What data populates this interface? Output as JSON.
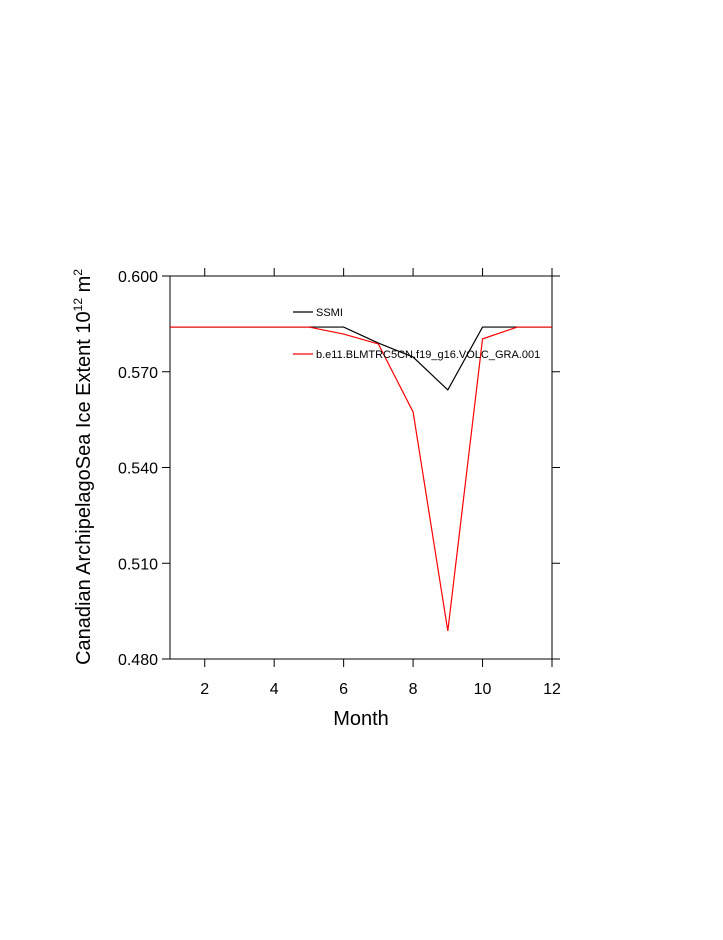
{
  "chart_data": {
    "type": "line",
    "xlabel": "Month",
    "ylabel": {
      "text": "Canadian ArchipelagoSea Ice Extent 10",
      "exp1": "12",
      "unit": " m",
      "exp2": "2"
    },
    "x": [
      1,
      2,
      3,
      4,
      5,
      6,
      7,
      8,
      9,
      10,
      11,
      12
    ],
    "series": [
      {
        "name": "SSMI",
        "color": "#000000",
        "values": [
          0.584,
          0.584,
          0.584,
          0.584,
          0.584,
          0.584,
          0.579,
          0.5746,
          0.5643,
          0.584,
          0.584,
          0.584
        ]
      },
      {
        "name": "b.e11.BLMTRC5CN.f19_g16.VOLC_GRA.001",
        "color": "#ff0000",
        "values": [
          0.584,
          0.584,
          0.584,
          0.584,
          0.584,
          0.5818,
          0.5787,
          0.5574,
          0.4888,
          0.5803,
          0.584,
          0.584
        ]
      }
    ],
    "xlim": [
      1,
      12
    ],
    "xticks": [
      2,
      4,
      6,
      8,
      10,
      12
    ],
    "ylim": [
      0.48,
      0.6
    ],
    "yticks": [
      {
        "value": 0.48,
        "label": "0.480"
      },
      {
        "value": 0.51,
        "label": "0.510"
      },
      {
        "value": 0.54,
        "label": "0.540"
      },
      {
        "value": 0.57,
        "label": "0.570"
      },
      {
        "value": 0.6,
        "label": "0.600"
      }
    ],
    "grid": false
  }
}
